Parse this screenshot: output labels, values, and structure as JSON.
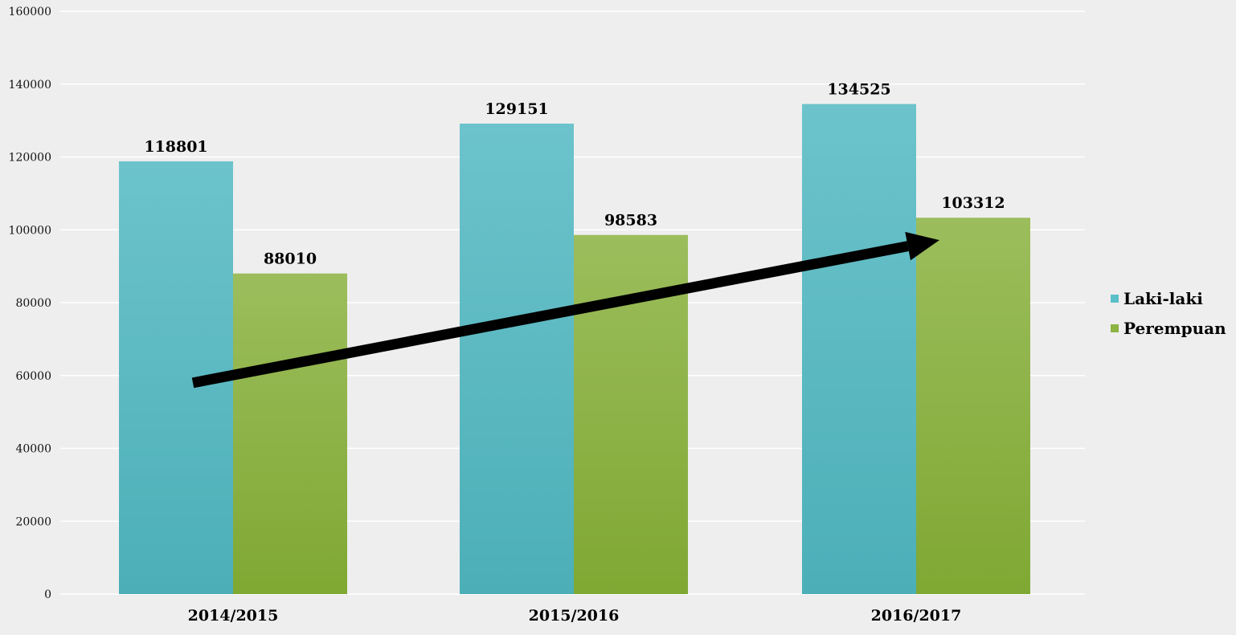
{
  "chart_data": {
    "type": "bar",
    "categories": [
      "2014/2015",
      "2015/2016",
      "2016/2017"
    ],
    "series": [
      {
        "name": "Laki-laki",
        "values": [
          118801,
          129151,
          134525
        ],
        "color": "#5bbfc8"
      },
      {
        "name": "Perempuan",
        "values": [
          88010,
          98583,
          103312
        ],
        "color": "#8db443"
      }
    ],
    "data_labels": [
      [
        "118801",
        "129151",
        "134525"
      ],
      [
        "88010",
        "98583",
        "103312"
      ]
    ],
    "yticks": [
      "0",
      "20000",
      "40000",
      "60000",
      "80000",
      "100000",
      "120000",
      "140000",
      "160000"
    ],
    "ylim": [
      0,
      160000
    ],
    "grid": true,
    "legend_position": "right",
    "trend_arrow": {
      "from_value": 58000,
      "to_value": 97000,
      "color": "#000000"
    },
    "title": "",
    "xlabel": "",
    "ylabel": ""
  }
}
